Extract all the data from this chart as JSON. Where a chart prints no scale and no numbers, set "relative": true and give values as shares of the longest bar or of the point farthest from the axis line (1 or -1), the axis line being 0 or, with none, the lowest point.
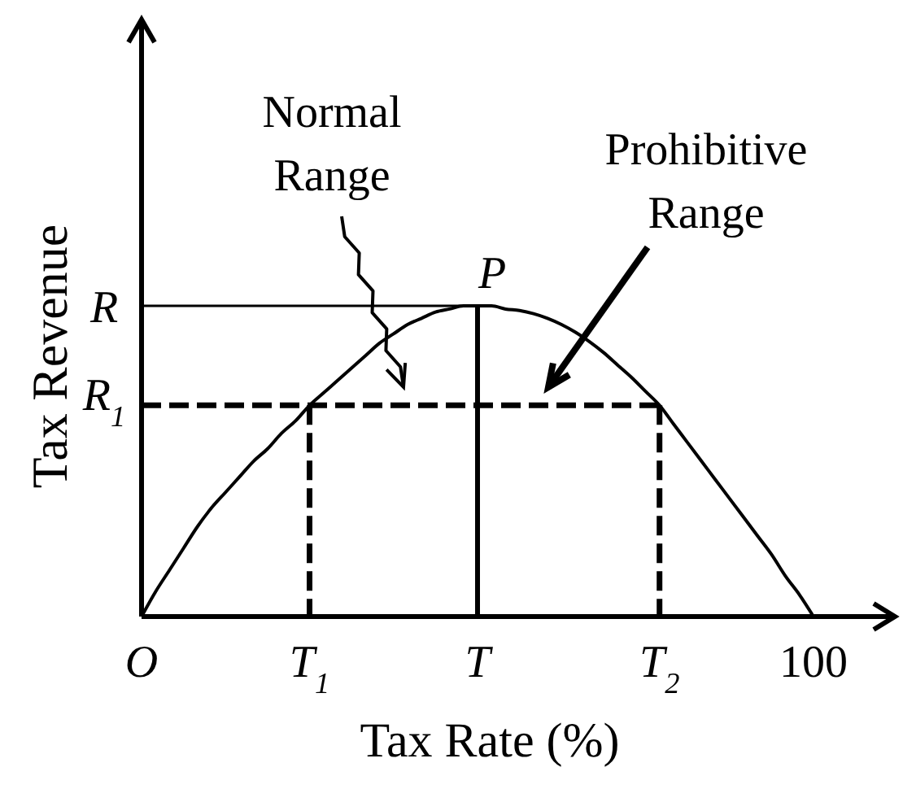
{
  "chart_data": {
    "type": "line",
    "xlabel": "Tax Rate (%)",
    "ylabel": "Tax Revenue",
    "relative": true,
    "marker": "none",
    "categories": [
      "O",
      null,
      null,
      null,
      null,
      null,
      null,
      null,
      null,
      null,
      null,
      null,
      "T$_{1}$",
      null,
      null,
      null,
      null,
      null,
      null,
      null,
      null,
      null,
      null,
      null,
      "T",
      null,
      null,
      null,
      null,
      null,
      null,
      null,
      null,
      null,
      null,
      null,
      null,
      "T$_{2}$",
      null,
      null,
      null,
      null,
      null,
      null,
      null,
      null,
      null,
      null,
      "100"
    ],
    "series": [
      {
        "color": "#000000",
        "values": [
          0,
          0.08,
          0.15,
          0.22,
          0.29,
          0.35,
          0.4,
          0.45,
          0.5,
          0.54,
          0.59,
          0.63,
          0.68,
          0.72,
          0.76,
          0.8,
          0.84,
          0.88,
          0.91,
          0.94,
          0.96,
          0.98,
          0.99,
          1,
          1,
          1,
          0.99,
          0.985,
          0.975,
          0.96,
          0.94,
          0.915,
          0.885,
          0.85,
          0.81,
          0.77,
          0.725,
          0.68,
          0.62,
          0.56,
          0.5,
          0.44,
          0.38,
          0.32,
          0.26,
          0.2,
          0.13,
          0.07,
          0
        ]
      },
      {
        "type": "line",
        "color": "#000000",
        "x": [
          "O",
          "T"
        ],
        "values": [
          1,
          1
        ],
        "line_style": "solid"
      },
      {
        "type": "line",
        "color": "#000000",
        "x": [
          "T",
          "T"
        ],
        "values": [
          1,
          0
        ],
        "line_style": "solid"
      },
      {
        "type": "line",
        "color": "#000000",
        "x": [
          "O",
          "T$_{2}$"
        ],
        "values": [
          0.68,
          0.68
        ],
        "line_style": "dashed"
      },
      {
        "type": "line",
        "color": "#000000",
        "x": [
          "T$_{1}$",
          "T$_{1}$"
        ],
        "values": [
          0.68,
          0
        ],
        "line_style": "dashed"
      },
      {
        "type": "line",
        "color": "#000000",
        "x": [
          "T$_{2}$",
          "T$_{2}$"
        ],
        "values": [
          0.68,
          0
        ],
        "line_style": "dashed"
      }
    ],
    "annotations": [
      {
        "text": "R",
        "x": "O",
        "y": 1
      },
      {
        "text": "R$_{1}$",
        "x": "O",
        "y": 0.68
      },
      {
        "text": "P",
        "x": "T",
        "y": 1
      },
      "Normal Range",
      "Prohibitive Range"
    ]
  }
}
